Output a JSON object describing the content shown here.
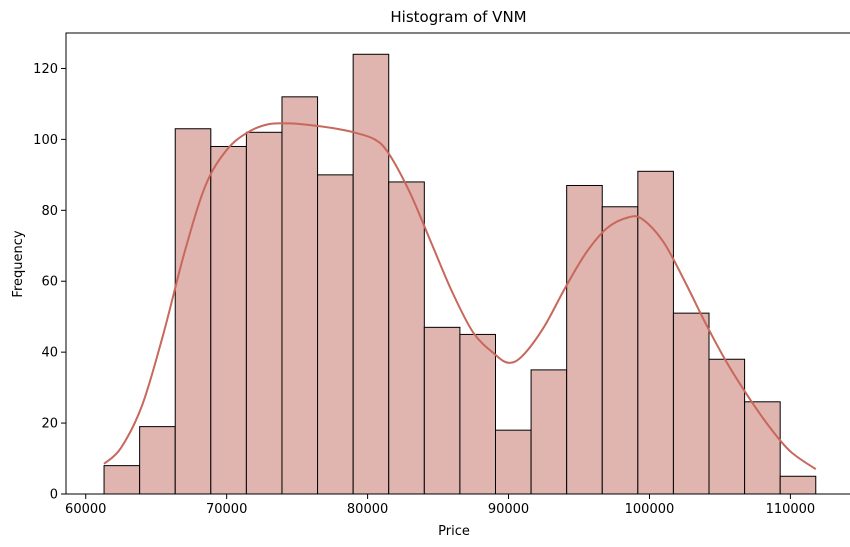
{
  "chart_data": {
    "type": "bar",
    "title": "Histogram of VNM",
    "xlabel": "Price",
    "ylabel": "Frequency",
    "xlim": [
      58600,
      114300
    ],
    "ylim": [
      0,
      130
    ],
    "xticks": [
      60000,
      70000,
      80000,
      90000,
      100000,
      110000
    ],
    "yticks": [
      0,
      20,
      40,
      60,
      80,
      100,
      120
    ],
    "bin_start": 61300,
    "bin_width": 2525,
    "values": [
      8,
      19,
      103,
      98,
      102,
      112,
      90,
      124,
      88,
      47,
      45,
      18,
      35,
      87,
      81,
      91,
      51,
      38,
      26,
      5
    ],
    "kde": {
      "x": [
        61300,
        62500,
        64000,
        65500,
        67000,
        68500,
        70000,
        71500,
        73000,
        74500,
        76000,
        77500,
        79000,
        80500,
        81500,
        83000,
        84500,
        86000,
        87500,
        89000,
        90000,
        91000,
        92500,
        94000,
        95500,
        97000,
        98500,
        99500,
        101000,
        102500,
        104000,
        105500,
        107000,
        108500,
        110000,
        111800
      ],
      "y": [
        8.5,
        13,
        25,
        45,
        68,
        87,
        97,
        102,
        104.3,
        104.5,
        104,
        103.2,
        102,
        100,
        96,
        85,
        71,
        57,
        45.5,
        39.5,
        37,
        39,
        47,
        58,
        68,
        75,
        78,
        77.5,
        71,
        60,
        48,
        37,
        27.5,
        19,
        12,
        7
      ]
    },
    "colors": {
      "bar_fill": "#e0b4af",
      "bar_edge": "#000000",
      "kde_line": "#c8675c"
    }
  }
}
